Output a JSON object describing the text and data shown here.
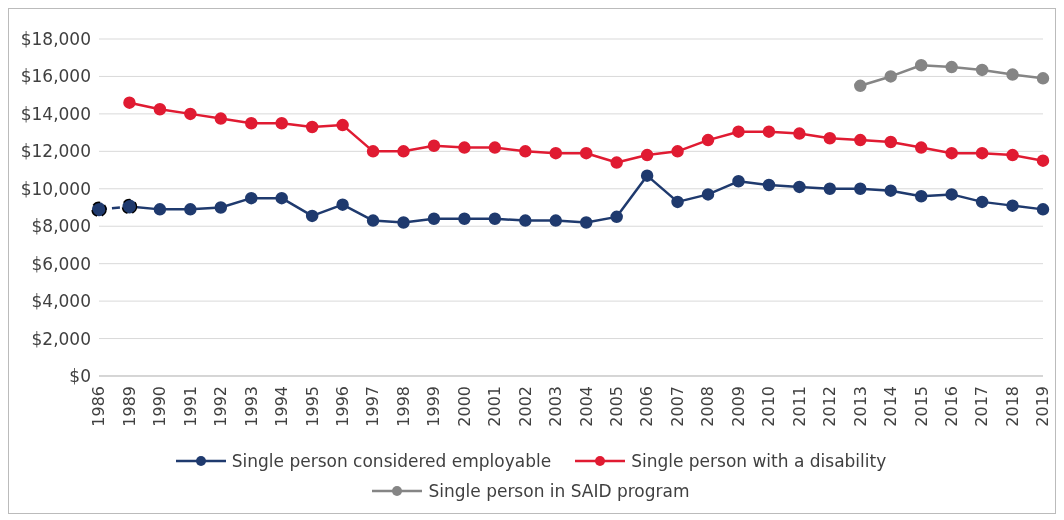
{
  "chart_data": {
    "type": "line",
    "categories": [
      "1986",
      "1989",
      "1990",
      "1991",
      "1992",
      "1993",
      "1994",
      "1995",
      "1996",
      "1997",
      "1998",
      "1999",
      "2000",
      "2001",
      "2002",
      "2003",
      "2004",
      "2005",
      "2006",
      "2007",
      "2008",
      "2009",
      "2010",
      "2011",
      "2012",
      "2013",
      "2014",
      "2015",
      "2016",
      "2017",
      "2018",
      "2019"
    ],
    "series": [
      {
        "color": "#1f3a6e",
        "line_style": "dashed",
        "values": [
          8900,
          9050,
          null,
          null,
          null,
          null,
          null,
          null,
          null,
          null,
          null,
          null,
          null,
          null,
          null,
          null,
          null,
          null,
          null,
          null,
          null,
          null,
          null,
          null,
          null,
          null,
          null,
          null,
          null,
          null,
          null,
          null
        ]
      },
      {
        "name": "Single person considered employable",
        "color": "#1f3a6e",
        "values": [
          null,
          9050,
          8900,
          8900,
          9000,
          9500,
          9500,
          8550,
          9150,
          8300,
          8200,
          8400,
          8400,
          8400,
          8300,
          8300,
          8200,
          8500,
          10700,
          9300,
          9700,
          10400,
          10200,
          10100,
          10000,
          10000,
          9900,
          9600,
          9700,
          9300,
          9100,
          8900
        ]
      },
      {
        "name": "Single person with a disability",
        "color": "#e01b32",
        "values": [
          null,
          14600,
          14250,
          14000,
          13750,
          13500,
          13500,
          13300,
          13400,
          12000,
          12000,
          12300,
          12200,
          12200,
          12000,
          11900,
          11900,
          11400,
          11800,
          12000,
          12600,
          13050,
          13050,
          12950,
          12700,
          12600,
          12500,
          12200,
          11900,
          11900,
          11800,
          11500
        ]
      },
      {
        "name": "Single person in SAID program",
        "color": "#858585",
        "values": [
          null,
          null,
          null,
          null,
          null,
          null,
          null,
          null,
          null,
          null,
          null,
          null,
          null,
          null,
          null,
          null,
          null,
          null,
          null,
          null,
          null,
          null,
          null,
          null,
          null,
          15500,
          16000,
          16600,
          16500,
          16350,
          16100,
          15900
        ]
      }
    ],
    "ylim": [
      0,
      18000
    ],
    "yticks": [
      {
        "value": 0,
        "label": "$0"
      },
      {
        "value": 2000,
        "label": "$2,000"
      },
      {
        "value": 4000,
        "label": "$4,000"
      },
      {
        "value": 6000,
        "label": "$6,000"
      },
      {
        "value": 8000,
        "label": "$8,000"
      },
      {
        "value": 10000,
        "label": "$10,000"
      },
      {
        "value": 12000,
        "label": "$12,000"
      },
      {
        "value": 14000,
        "label": "$14,000"
      },
      {
        "value": 16000,
        "label": "$16,000"
      },
      {
        "value": 18000,
        "label": "$18,000"
      }
    ],
    "grid": "y",
    "legend": "bottom",
    "marker": "circle",
    "line_style": "solid"
  }
}
